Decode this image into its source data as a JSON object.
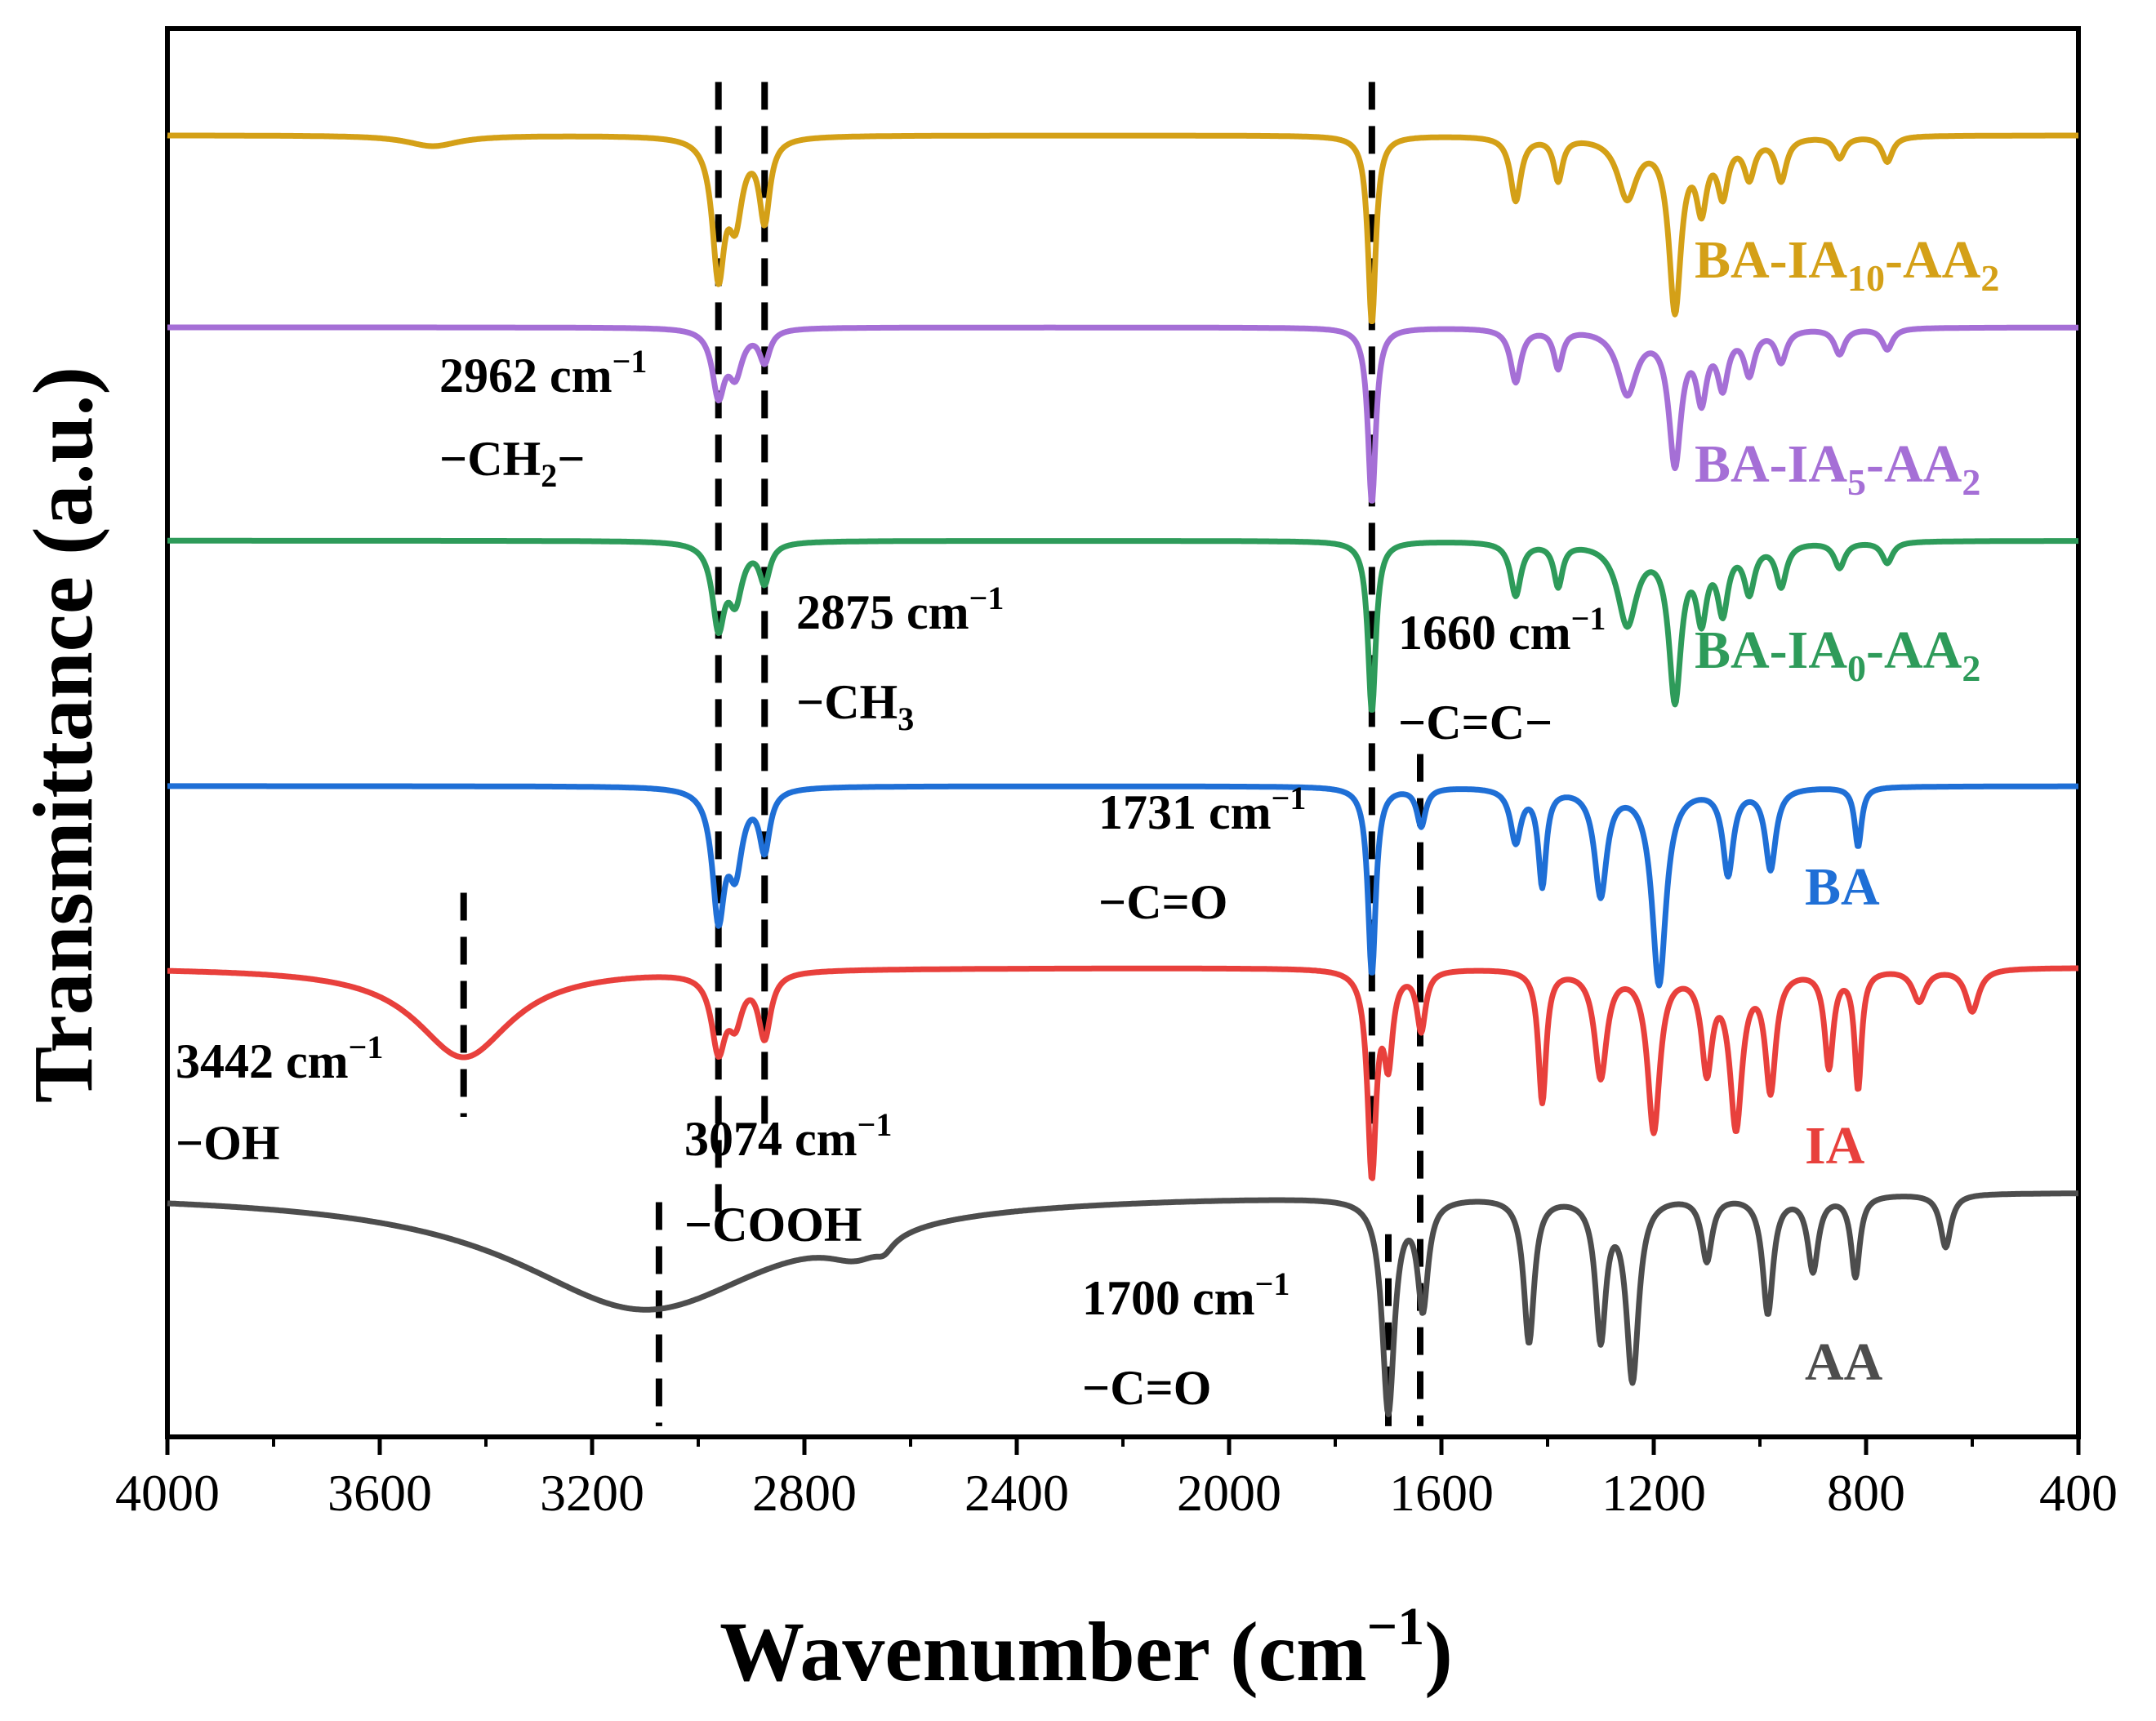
{
  "chart_data": {
    "type": "line",
    "title": "",
    "xlabel": "Wavenumber (cm",
    "xlabel_sup": "−1",
    "xlabel_tail": ")",
    "ylabel": "Transmittance (a.u.)",
    "xlim": [
      4000,
      400
    ],
    "x_reversed": true,
    "ylim": [
      0,
      6.6
    ],
    "xticks": [
      4000,
      3600,
      3200,
      2800,
      2400,
      2000,
      1600,
      1200,
      800,
      400
    ],
    "grid": false,
    "series": [
      {
        "name": "BA-IA10-AA2",
        "label": {
          "main": "BA-IA",
          "sub1": "10",
          "mid": "-AA",
          "sub2": "2"
        },
        "color": "#D4A017",
        "baseline": 6.1,
        "peaks": [
          [
            3500,
            0.05,
            60
          ],
          [
            2962,
            0.62,
            14
          ],
          [
            2930,
            0.35,
            16
          ],
          [
            2875,
            0.38,
            12
          ],
          [
            1731,
            0.88,
            9
          ],
          [
            1460,
            0.3,
            12
          ],
          [
            1380,
            0.2,
            10
          ],
          [
            1250,
            0.28,
            22
          ],
          [
            1160,
            0.8,
            14
          ],
          [
            1110,
            0.3,
            12
          ],
          [
            1070,
            0.25,
            12
          ],
          [
            1020,
            0.18,
            12
          ],
          [
            960,
            0.2,
            12
          ],
          [
            850,
            0.1,
            12
          ],
          [
            760,
            0.12,
            12
          ]
        ]
      },
      {
        "name": "BA-IA5-AA2",
        "label": {
          "main": "BA-IA",
          "sub1": "5",
          "mid": "-AA",
          "sub2": "2"
        },
        "color": "#A56FD6",
        "baseline": 5.2,
        "peaks": [
          [
            2962,
            0.3,
            14
          ],
          [
            2930,
            0.2,
            16
          ],
          [
            2875,
            0.15,
            12
          ],
          [
            1731,
            0.82,
            9
          ],
          [
            1460,
            0.25,
            12
          ],
          [
            1380,
            0.18,
            10
          ],
          [
            1250,
            0.3,
            22
          ],
          [
            1160,
            0.62,
            14
          ],
          [
            1110,
            0.3,
            12
          ],
          [
            1070,
            0.25,
            12
          ],
          [
            1020,
            0.2,
            12
          ],
          [
            960,
            0.15,
            12
          ],
          [
            850,
            0.12,
            12
          ],
          [
            760,
            0.1,
            12
          ]
        ]
      },
      {
        "name": "BA-IA0-AA2",
        "label": {
          "main": "BA-IA",
          "sub1": "0",
          "mid": "-AA",
          "sub2": "2"
        },
        "color": "#2E9B5A",
        "baseline": 4.2,
        "peaks": [
          [
            2962,
            0.38,
            14
          ],
          [
            2930,
            0.25,
            16
          ],
          [
            2875,
            0.18,
            12
          ],
          [
            1731,
            0.8,
            9
          ],
          [
            1460,
            0.25,
            12
          ],
          [
            1380,
            0.2,
            10
          ],
          [
            1250,
            0.38,
            22
          ],
          [
            1160,
            0.72,
            14
          ],
          [
            1110,
            0.32,
            12
          ],
          [
            1070,
            0.3,
            12
          ],
          [
            1020,
            0.22,
            12
          ],
          [
            960,
            0.2,
            12
          ],
          [
            850,
            0.12,
            12
          ],
          [
            760,
            0.1,
            12
          ]
        ]
      },
      {
        "name": "BA",
        "label": {
          "main": "BA",
          "sub1": "",
          "mid": "",
          "sub2": ""
        },
        "color": "#1F6FD6",
        "baseline": 3.05,
        "peaks": [
          [
            2962,
            0.58,
            14
          ],
          [
            2930,
            0.35,
            16
          ],
          [
            2875,
            0.28,
            12
          ],
          [
            1731,
            0.88,
            9
          ],
          [
            1638,
            0.18,
            10
          ],
          [
            1460,
            0.25,
            12
          ],
          [
            1410,
            0.45,
            9
          ],
          [
            1300,
            0.5,
            14
          ],
          [
            1190,
            0.92,
            16
          ],
          [
            1060,
            0.4,
            12
          ],
          [
            980,
            0.38,
            12
          ],
          [
            815,
            0.28,
            8
          ]
        ]
      },
      {
        "name": "IA",
        "label": {
          "main": "IA",
          "sub1": "",
          "mid": "",
          "sub2": ""
        },
        "color": "#E8403C",
        "baseline": 2.2,
        "peaks": [
          [
            3442,
            0.42,
            110
          ],
          [
            2962,
            0.35,
            16
          ],
          [
            2930,
            0.2,
            16
          ],
          [
            2875,
            0.3,
            14
          ],
          [
            1731,
            0.95,
            10
          ],
          [
            1700,
            0.4,
            10
          ],
          [
            1638,
            0.28,
            10
          ],
          [
            1410,
            0.62,
            9
          ],
          [
            1300,
            0.5,
            14
          ],
          [
            1200,
            0.75,
            14
          ],
          [
            1100,
            0.45,
            12
          ],
          [
            1045,
            0.72,
            14
          ],
          [
            980,
            0.55,
            12
          ],
          [
            870,
            0.45,
            10
          ],
          [
            815,
            0.55,
            8
          ],
          [
            700,
            0.15,
            15
          ],
          [
            600,
            0.2,
            15
          ]
        ]
      },
      {
        "name": "AA",
        "label": {
          "main": "AA",
          "sub1": "",
          "mid": "",
          "sub2": ""
        },
        "color": "#4D4D4D",
        "baseline": 1.15,
        "peaks": [
          [
            3100,
            0.55,
            300
          ],
          [
            2700,
            0.12,
            70
          ],
          [
            2650,
            0.05,
            20
          ],
          [
            1700,
            1.0,
            14
          ],
          [
            1635,
            0.5,
            12
          ],
          [
            1435,
            0.68,
            12
          ],
          [
            1300,
            0.65,
            12
          ],
          [
            1240,
            0.85,
            14
          ],
          [
            1100,
            0.3,
            12
          ],
          [
            985,
            0.55,
            12
          ],
          [
            900,
            0.35,
            12
          ],
          [
            820,
            0.38,
            10
          ],
          [
            650,
            0.25,
            12
          ]
        ]
      }
    ],
    "markers": [
      {
        "x": 3442,
        "y_top": 2.55,
        "y_bottom": 1.5
      },
      {
        "x": 3074,
        "y_top": 1.1,
        "y_bottom": 0.05
      },
      {
        "x": 2962,
        "y_top": 6.35,
        "y_bottom": 1.05
      },
      {
        "x": 2875,
        "y_top": 6.35,
        "y_bottom": 1.4
      },
      {
        "x": 1731,
        "y_top": 6.35,
        "y_bottom": 1.35
      },
      {
        "x": 1700,
        "y_top": 0.95,
        "y_bottom": 0.05
      },
      {
        "x": 1640,
        "y_top": 3.2,
        "y_bottom": 0.05
      }
    ],
    "annotations": [
      {
        "id": "a2962",
        "wavenumber": "2962 cm",
        "sup": "−1",
        "group": "−CH",
        "group_sub": "2",
        "group_tail": "−"
      },
      {
        "id": "a2875",
        "wavenumber": "2875 cm",
        "sup": "−1",
        "group": "−CH",
        "group_sub": "3",
        "group_tail": ""
      },
      {
        "id": "a1660",
        "wavenumber": "1660 cm",
        "sup": "−1",
        "group": "−C=C−",
        "group_sub": "",
        "group_tail": ""
      },
      {
        "id": "a1731",
        "wavenumber": "1731 cm",
        "sup": "−1",
        "group": "−C=O",
        "group_sub": "",
        "group_tail": ""
      },
      {
        "id": "a3442",
        "wavenumber": "3442 cm",
        "sup": "−1",
        "group": "−OH",
        "group_sub": "",
        "group_tail": ""
      },
      {
        "id": "a3074",
        "wavenumber": "3074 cm",
        "sup": "−1",
        "group": "−COOH",
        "group_sub": "",
        "group_tail": ""
      },
      {
        "id": "a1700",
        "wavenumber": "1700 cm",
        "sup": "−1",
        "group": "−C=O",
        "group_sub": "",
        "group_tail": ""
      }
    ]
  }
}
